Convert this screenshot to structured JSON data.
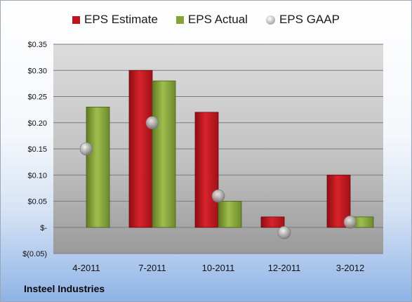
{
  "company": "Insteel Industries",
  "chart_data": {
    "type": "bar",
    "categories": [
      "4-2011",
      "7-2011",
      "10-2011",
      "12-2011",
      "3-2012"
    ],
    "series": [
      {
        "name": "EPS Estimate",
        "type": "bar",
        "color": "#c0141b",
        "values": [
          null,
          0.3,
          0.22,
          0.02,
          0.1
        ]
      },
      {
        "name": "EPS Actual",
        "type": "bar",
        "color": "#86a33a",
        "values": [
          0.23,
          0.28,
          0.05,
          null,
          0.02
        ]
      },
      {
        "name": "EPS GAAP",
        "type": "scatter",
        "color": "#b0b0b0",
        "values": [
          0.15,
          0.2,
          0.06,
          -0.01,
          0.01
        ]
      }
    ],
    "ylim": [
      -0.05,
      0.35
    ],
    "ytick_values": [
      -0.05,
      0,
      0.05,
      0.1,
      0.15,
      0.2,
      0.25,
      0.3,
      0.35
    ],
    "ytick_labels": [
      "$(0.05)",
      "$-",
      "$0.05",
      "$0.10",
      "$0.15",
      "$0.20",
      "$0.25",
      "$0.30",
      "$0.35"
    ],
    "legend_position": "top",
    "grid": true
  }
}
